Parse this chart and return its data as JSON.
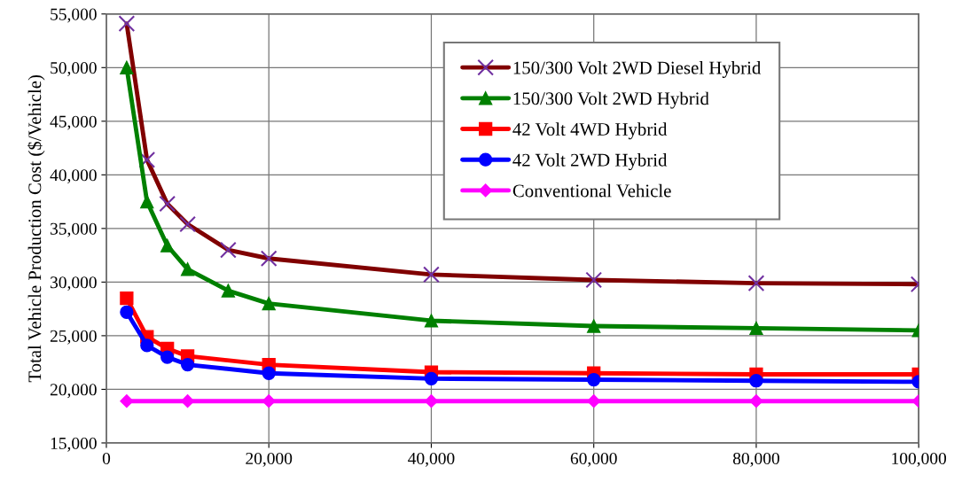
{
  "chart_data": {
    "type": "line",
    "ylabel": "Total Vehicle Production Cost ($/Vehicle)",
    "xlim": [
      0,
      100000
    ],
    "ylim": [
      15000,
      55000
    ],
    "xticks": [
      0,
      {
        "value": 20000,
        "label": "20,000"
      },
      {
        "value": 40000,
        "label": "40,000"
      },
      {
        "value": 60000,
        "label": "60,000"
      },
      {
        "value": 80000,
        "label": "80,000"
      },
      {
        "value": 100000,
        "label": "100,000"
      }
    ],
    "yticks": [
      {
        "value": 15000,
        "label": "15,000"
      },
      {
        "value": 20000,
        "label": "20,000"
      },
      {
        "value": 25000,
        "label": "25,000"
      },
      {
        "value": 30000,
        "label": "30,000"
      },
      {
        "value": 35000,
        "label": "35,000"
      },
      {
        "value": 40000,
        "label": "40,000"
      },
      {
        "value": 45000,
        "label": "45,000"
      },
      {
        "value": 50000,
        "label": "50,000"
      },
      {
        "value": 55000,
        "label": "55,000"
      }
    ],
    "grid": true,
    "legend": "top right",
    "line_style": "solid",
    "series": [
      {
        "name": "150/300 Volt 2WD Diesel Hybrid",
        "color": "#800000",
        "marker": "cross",
        "x": [
          2500,
          5000,
          7500,
          10000,
          15000,
          20000,
          40000,
          60000,
          80000,
          100000
        ],
        "values": [
          54100,
          41400,
          37300,
          35400,
          33000,
          32200,
          30700,
          30200,
          29900,
          29800
        ]
      },
      {
        "name": "150/300 Volt 2WD Hybrid",
        "color": "#008000",
        "marker": "triangle",
        "x": [
          2500,
          5000,
          7500,
          10000,
          15000,
          20000,
          40000,
          60000,
          80000,
          100000
        ],
        "values": [
          50000,
          37500,
          33400,
          31200,
          29200,
          28000,
          26400,
          25900,
          25700,
          25500
        ]
      },
      {
        "name": "42 Volt 4WD Hybrid",
        "color": "#ff0000",
        "marker": "square",
        "x": [
          2500,
          5000,
          7500,
          10000,
          20000,
          40000,
          60000,
          80000,
          100000
        ],
        "values": [
          28500,
          24900,
          23800,
          23100,
          22300,
          21600,
          21500,
          21400,
          21400
        ]
      },
      {
        "name": "42 Volt 2WD Hybrid",
        "color": "#0000ff",
        "marker": "circle",
        "x": [
          2500,
          5000,
          7500,
          10000,
          20000,
          40000,
          60000,
          80000,
          100000
        ],
        "values": [
          27200,
          24100,
          23000,
          22300,
          21500,
          21000,
          20900,
          20800,
          20700
        ]
      },
      {
        "name": "Conventional Vehicle",
        "color": "#ff00ff",
        "marker": "diamond",
        "x": [
          2500,
          10000,
          20000,
          40000,
          60000,
          80000,
          100000
        ],
        "values": [
          18900,
          18900,
          18900,
          18900,
          18900,
          18900,
          18900
        ]
      }
    ]
  }
}
